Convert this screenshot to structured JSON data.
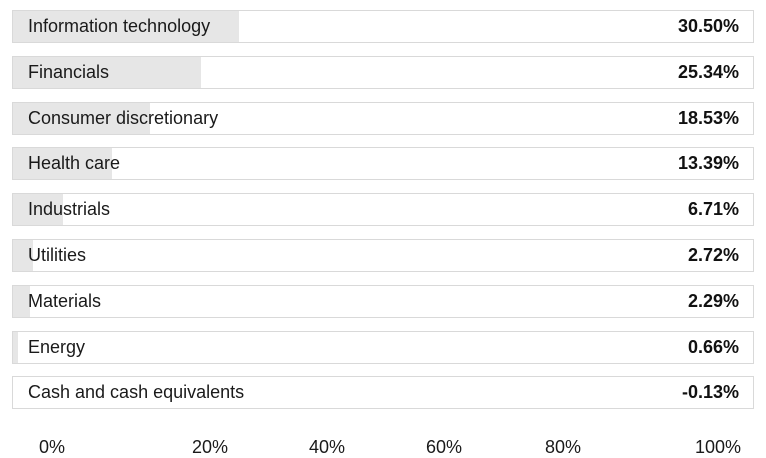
{
  "chart_data": {
    "type": "bar",
    "orientation": "horizontal",
    "categories": [
      "Information technology",
      "Financials",
      "Consumer discretionary",
      "Health care",
      "Industrials",
      "Utilities",
      "Materials",
      "Energy",
      "Cash and cash equivalents"
    ],
    "values": [
      30.5,
      25.34,
      18.53,
      13.39,
      6.71,
      2.72,
      2.29,
      0.66,
      -0.13
    ],
    "value_labels": [
      "30.50%",
      "25.34%",
      "18.53%",
      "13.39%",
      "6.71%",
      "2.72%",
      "2.29%",
      "0.66%",
      "-0.13%"
    ],
    "x_tick_labels": [
      "0%",
      "20%",
      "40%",
      "60%",
      "80%",
      "100%"
    ],
    "xlim": [
      0,
      100
    ],
    "grid": false,
    "legend": "none",
    "title": "",
    "xlabel": "",
    "ylabel": "",
    "colors": {
      "bar_fill": "#e6e6e6",
      "row_border": "#d9d9d9",
      "text": "#1a1a1a"
    }
  }
}
